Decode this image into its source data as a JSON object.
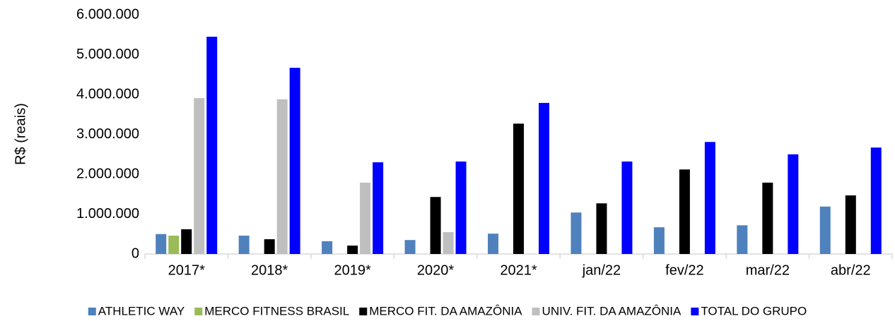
{
  "chart_data": {
    "type": "bar",
    "y_label": "R$ (reais)",
    "categories": [
      "2017*",
      "2018*",
      "2019*",
      "2020*",
      "2021*",
      "jan/22",
      "fev/22",
      "mar/22",
      "abr/22"
    ],
    "series": [
      {
        "name": "ATHLETIC WAY",
        "color": "#4f81bd",
        "values": [
          500000,
          460000,
          320000,
          350000,
          510000,
          1040000,
          670000,
          720000,
          1190000
        ]
      },
      {
        "name": "MERCO FITNESS BRASIL",
        "color": "#9bbb59",
        "values": [
          460000,
          null,
          null,
          null,
          null,
          null,
          null,
          null,
          null
        ]
      },
      {
        "name": "MERCO FIT. DA AMAZÔNIA",
        "color": "#000000",
        "values": [
          620000,
          370000,
          210000,
          1430000,
          3270000,
          1270000,
          2120000,
          1790000,
          1470000
        ]
      },
      {
        "name": "UNIV. FIT. DA AMAZÔNIA",
        "color": "#bfbfbf",
        "values": [
          3910000,
          3880000,
          1790000,
          550000,
          null,
          null,
          null,
          null,
          null
        ]
      },
      {
        "name": "TOTAL DO GRUPO",
        "color": "#0000ff",
        "values": [
          5450000,
          4670000,
          2300000,
          2320000,
          3790000,
          2320000,
          2810000,
          2500000,
          2670000
        ]
      }
    ],
    "ylim": [
      0,
      6000000
    ],
    "yticks": [
      0,
      {
        "value": 1000000,
        "label": "1.000.000"
      },
      {
        "value": 2000000,
        "label": "2.000.000"
      },
      {
        "value": 3000000,
        "label": "3.000.000"
      },
      {
        "value": 4000000,
        "label": "4.000.000"
      },
      {
        "value": 5000000,
        "label": "5.000.000"
      },
      {
        "value": 6000000,
        "label": "6.000.000"
      }
    ],
    "legend": "bottom"
  }
}
